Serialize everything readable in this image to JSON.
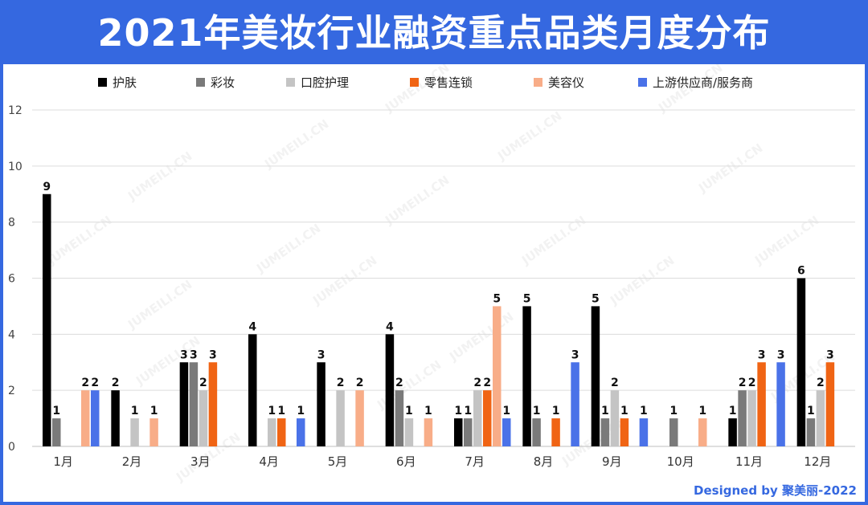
{
  "header": {
    "title": "2021年美妆行业融资重点品类月度分布"
  },
  "footer": {
    "credit": "Designed by 聚美丽-2022"
  },
  "watermark": {
    "text": "JUMEILI.CN"
  },
  "chart_data": {
    "type": "bar",
    "title": "2021年美妆行业融资重点品类月度分布",
    "xlabel": "",
    "ylabel": "",
    "ylim": [
      0,
      12
    ],
    "yticks": [
      0,
      2,
      4,
      6,
      8,
      10,
      12
    ],
    "grid": true,
    "legend_position": "top",
    "categories": [
      "1月",
      "2月",
      "3月",
      "4月",
      "5月",
      "6月",
      "7月",
      "8月",
      "9月",
      "10月",
      "11月",
      "12月"
    ],
    "series": [
      {
        "name": "护肤",
        "color": "#000000",
        "values": [
          9,
          2,
          3,
          4,
          3,
          4,
          1,
          5,
          5,
          null,
          1,
          6
        ]
      },
      {
        "name": "彩妆",
        "color": "#7a7a7a",
        "values": [
          1,
          null,
          3,
          null,
          null,
          2,
          1,
          1,
          1,
          1,
          2,
          1
        ]
      },
      {
        "name": "口腔护理",
        "color": "#c4c4c4",
        "values": [
          null,
          1,
          2,
          1,
          2,
          1,
          2,
          null,
          2,
          null,
          2,
          2
        ]
      },
      {
        "name": "零售连锁",
        "color": "#f06414",
        "values": [
          null,
          null,
          3,
          1,
          null,
          null,
          2,
          1,
          1,
          null,
          3,
          3
        ]
      },
      {
        "name": "美容仪",
        "color": "#f8ad88",
        "values": [
          2,
          1,
          null,
          null,
          2,
          1,
          5,
          null,
          null,
          1,
          null,
          null
        ]
      },
      {
        "name": "上游供应商/服务商",
        "color": "#4a72e8",
        "values": [
          2,
          null,
          null,
          1,
          null,
          null,
          1,
          3,
          1,
          null,
          3,
          null
        ]
      }
    ]
  }
}
